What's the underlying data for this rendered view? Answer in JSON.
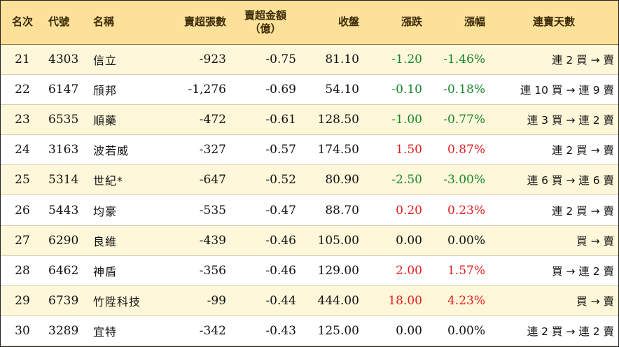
{
  "headers": {
    "rank": "名次",
    "code": "代號",
    "name": "名稱",
    "net_sell_shares": "賣超張數",
    "net_sell_amount_line1": "賣超金額",
    "net_sell_amount_line2": "（億）",
    "close": "收盤",
    "change": "漲跌",
    "change_pct": "漲幅",
    "streak": "連賣天數"
  },
  "rows": [
    {
      "rank": "21",
      "code": "4303",
      "name": "信立",
      "shares": "-923",
      "amount": "-0.75",
      "close": "81.10",
      "change": "-1.20",
      "pct": "-1.46%",
      "dir": "down",
      "streak": "連 2 買 → 賣"
    },
    {
      "rank": "22",
      "code": "6147",
      "name": "頎邦",
      "shares": "-1,276",
      "amount": "-0.69",
      "close": "54.10",
      "change": "-0.10",
      "pct": "-0.18%",
      "dir": "down",
      "streak": "連 10 買 → 連 9 賣"
    },
    {
      "rank": "23",
      "code": "6535",
      "name": "順藥",
      "shares": "-472",
      "amount": "-0.61",
      "close": "128.50",
      "change": "-1.00",
      "pct": "-0.77%",
      "dir": "down",
      "streak": "連 3 買 → 連 2 賣"
    },
    {
      "rank": "24",
      "code": "3163",
      "name": "波若威",
      "shares": "-327",
      "amount": "-0.57",
      "close": "174.50",
      "change": "1.50",
      "pct": "0.87%",
      "dir": "up",
      "streak": "連 2 買 → 賣"
    },
    {
      "rank": "25",
      "code": "5314",
      "name": "世紀*",
      "shares": "-647",
      "amount": "-0.52",
      "close": "80.90",
      "change": "-2.50",
      "pct": "-3.00%",
      "dir": "down",
      "streak": "連 6 買 → 連 6 賣"
    },
    {
      "rank": "26",
      "code": "5443",
      "name": "均豪",
      "shares": "-535",
      "amount": "-0.47",
      "close": "88.70",
      "change": "0.20",
      "pct": "0.23%",
      "dir": "up",
      "streak": "連 2 買 → 賣"
    },
    {
      "rank": "27",
      "code": "6290",
      "name": "良維",
      "shares": "-439",
      "amount": "-0.46",
      "close": "105.00",
      "change": "0.00",
      "pct": "0.00%",
      "dir": "flat",
      "streak": "買 → 賣"
    },
    {
      "rank": "28",
      "code": "6462",
      "name": "神盾",
      "shares": "-356",
      "amount": "-0.46",
      "close": "129.00",
      "change": "2.00",
      "pct": "1.57%",
      "dir": "up",
      "streak": "買 → 連 2 賣"
    },
    {
      "rank": "29",
      "code": "6739",
      "name": "竹陞科技",
      "shares": "-99",
      "amount": "-0.44",
      "close": "444.00",
      "change": "18.00",
      "pct": "4.23%",
      "dir": "up",
      "streak": "買 → 賣"
    },
    {
      "rank": "30",
      "code": "3289",
      "name": "宜特",
      "shares": "-342",
      "amount": "-0.43",
      "close": "125.00",
      "change": "0.00",
      "pct": "0.00%",
      "dir": "flat",
      "streak": "連 2 買 → 連 2 賣"
    }
  ],
  "colors": {
    "header_bg": "#fde19a",
    "stripe_bg": "#fff7da",
    "up": "#e01e1e",
    "down": "#15882a"
  }
}
